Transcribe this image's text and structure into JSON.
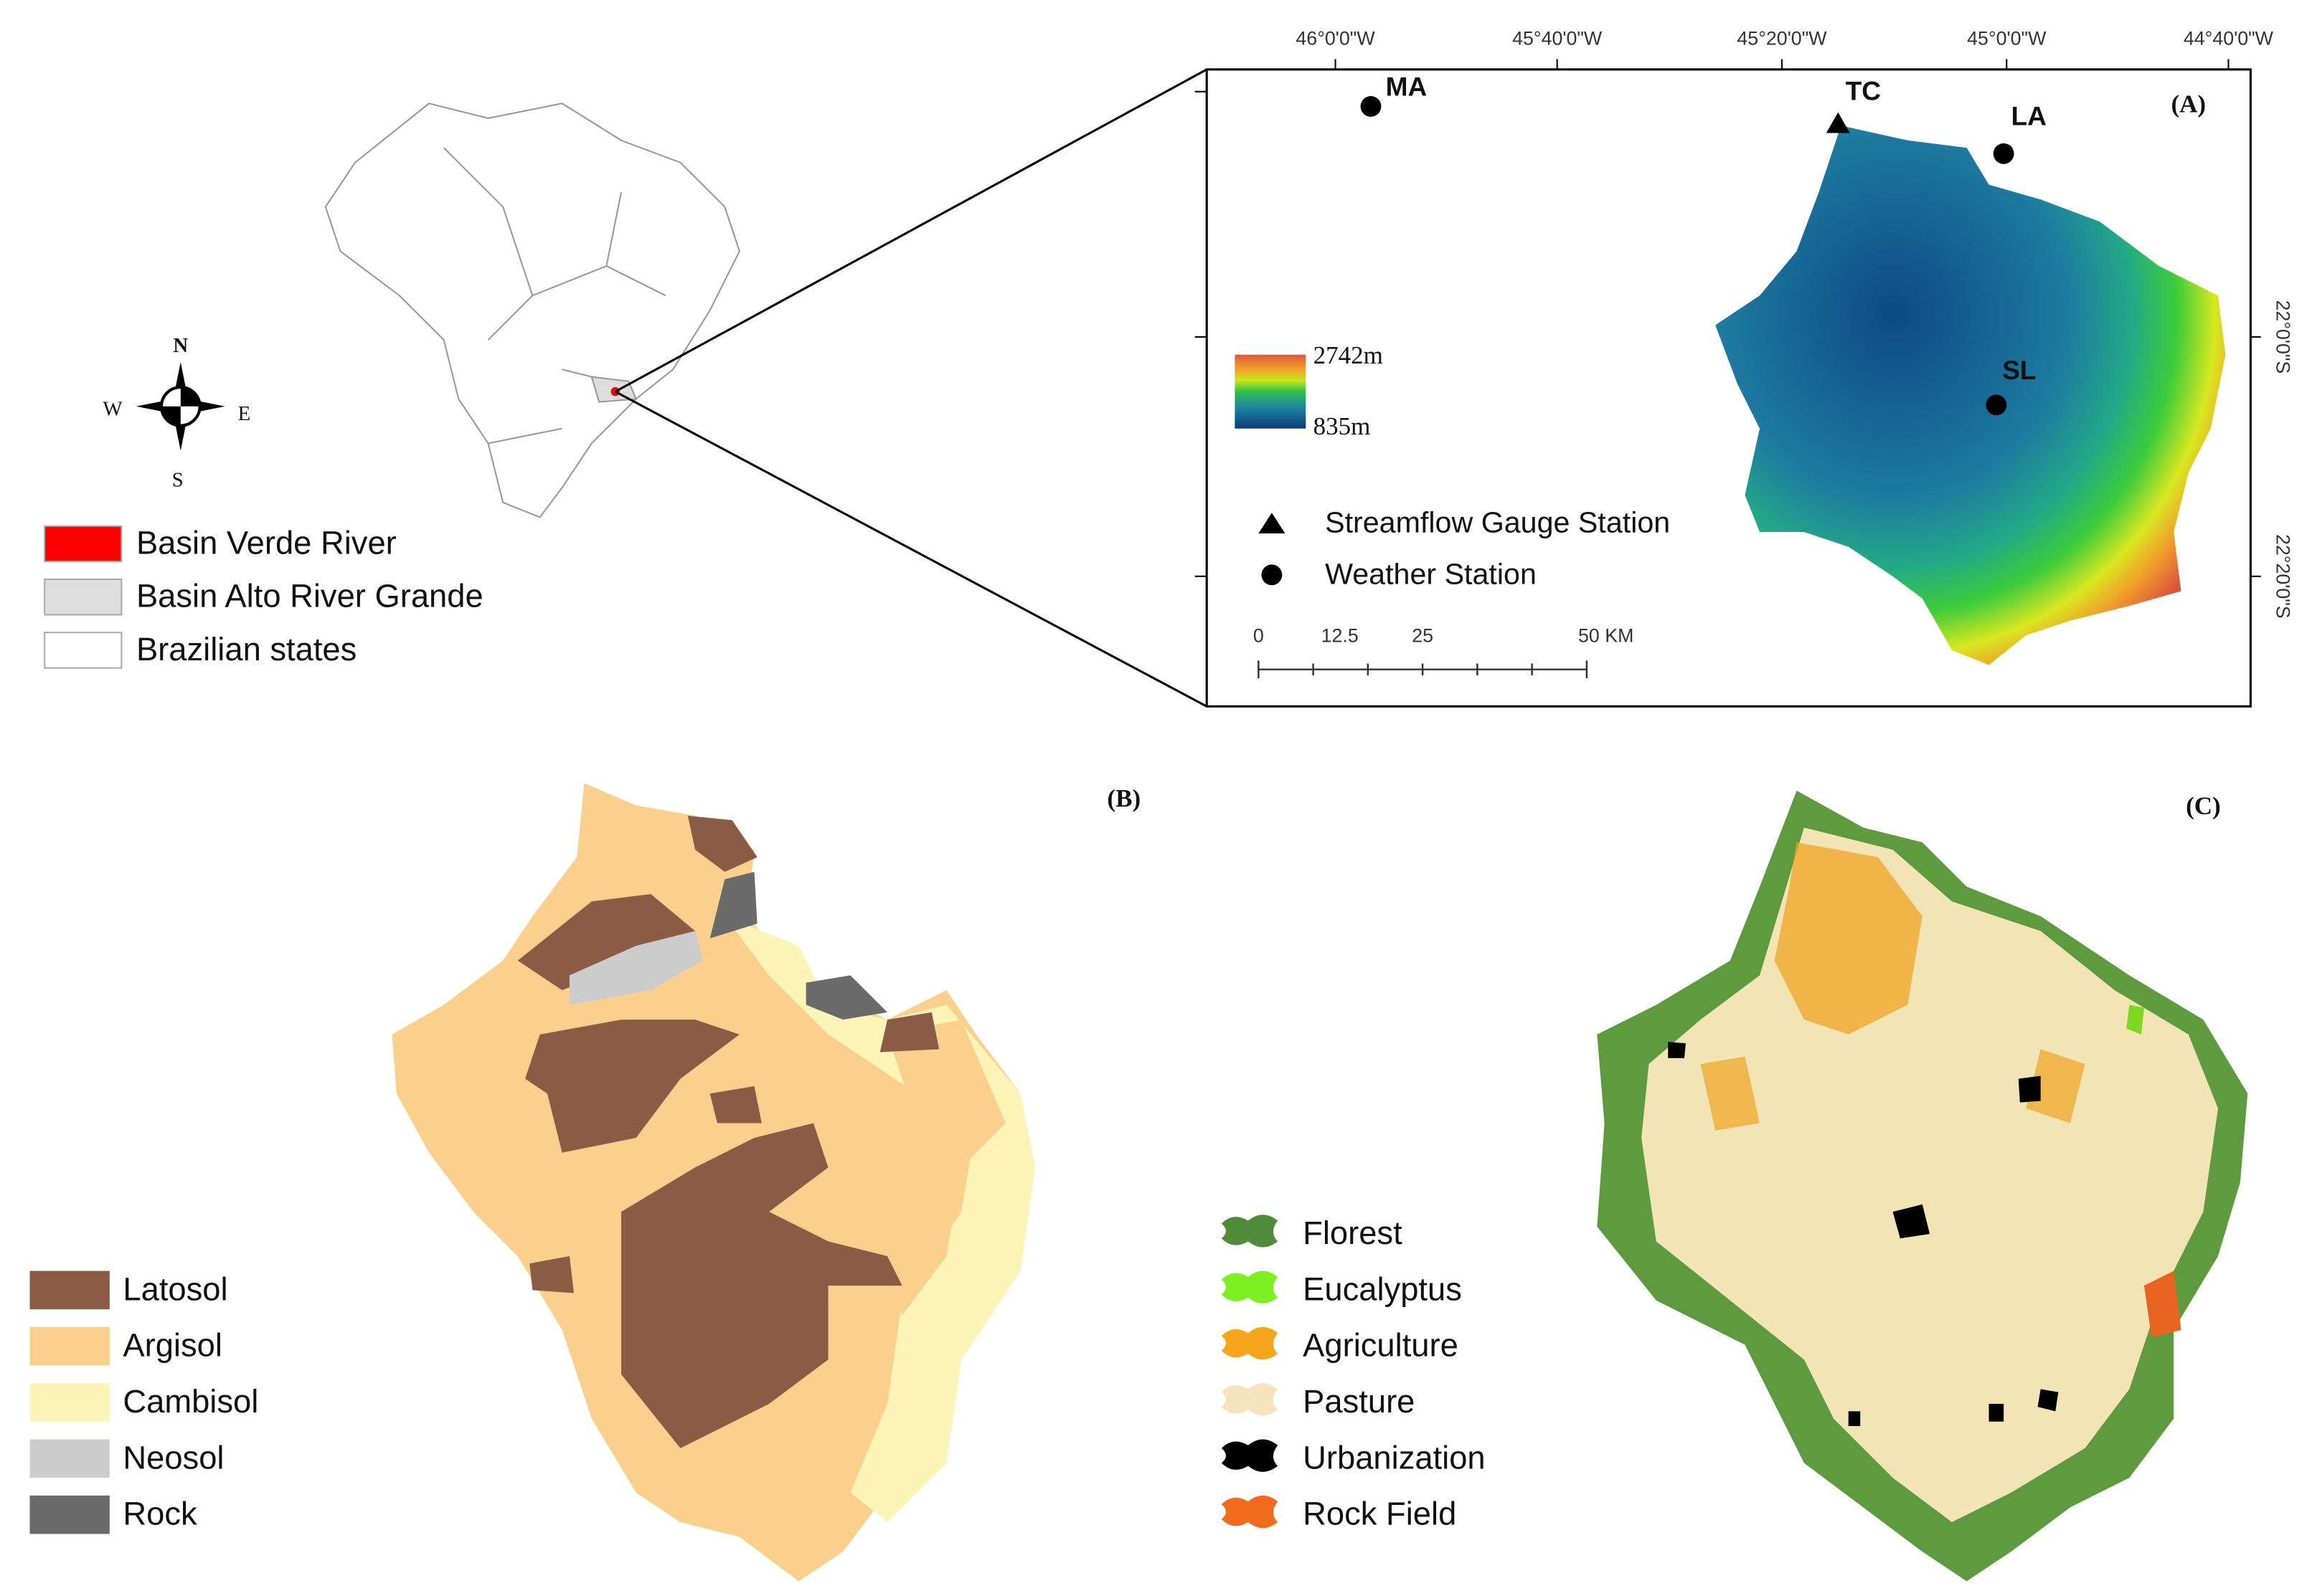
{
  "compass": {
    "n": "N",
    "w": "W",
    "e": "E",
    "s": "S"
  },
  "brazil_legend": [
    "Basin Verde River",
    "Basin Alto River Grande",
    "Brazilian states"
  ],
  "panel_a": {
    "label": "(A)",
    "lon_ticks": [
      "46°0'0\"W",
      "45°40'0\"W",
      "45°20'0\"W",
      "45°0'0\"W",
      "44°40'0\"W"
    ],
    "lat_ticks": [
      "22°0'0\"S",
      "22°20'0\"S"
    ],
    "stations": [
      "MA",
      "TC",
      "LA",
      "SL"
    ],
    "elevation_max": "2742m",
    "elevation_min": "835m",
    "legend": [
      "Streamflow Gauge Station",
      "Weather Station"
    ],
    "scale": [
      "0",
      "12.5",
      "25",
      "50 KM"
    ]
  },
  "panel_b": {
    "label": "(B)",
    "legend": [
      "Latosol",
      "Argisol",
      "Cambisol",
      "Neosol",
      "Rock"
    ]
  },
  "panel_c": {
    "label": "(C)",
    "legend": [
      "Florest",
      "Eucalyptus",
      "Agriculture",
      "Pasture",
      "Urbanization",
      "Rock Field"
    ]
  }
}
